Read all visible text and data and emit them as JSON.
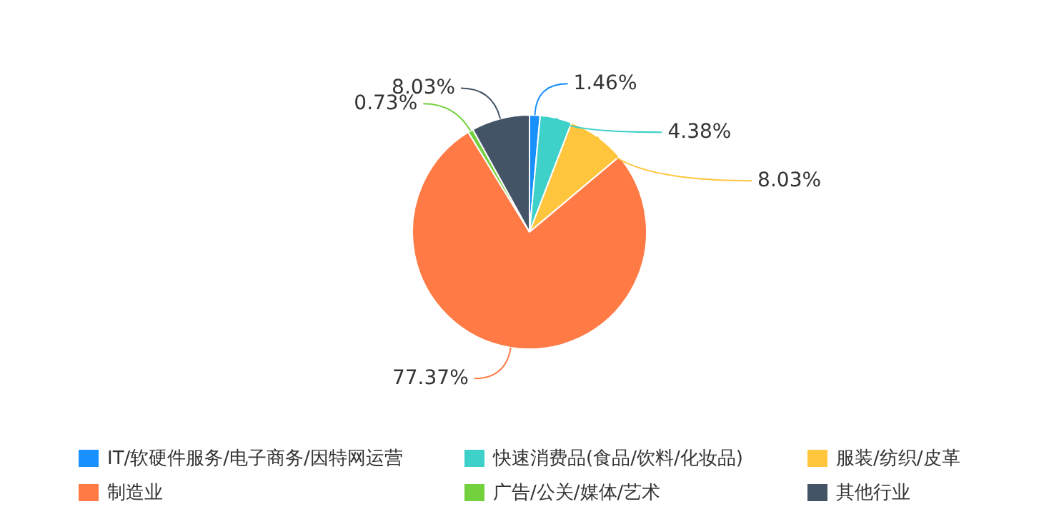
{
  "chart_data": {
    "type": "pie",
    "categories": [
      "IT/软硬件服务/电子商务/因特网运营",
      "快速消费品(食品/饮料/化妆品)",
      "服装/纺织/皮革",
      "制造业",
      "广告/公关/媒体/艺术",
      "其他行业"
    ],
    "values": [
      1.46,
      4.38,
      8.03,
      77.37,
      0.73,
      8.03
    ],
    "colors": [
      "#1890ff",
      "#3dd1c9",
      "#ffc53d",
      "#ff7a45",
      "#73d13d",
      "#435466"
    ],
    "value_labels": [
      "1.46%",
      "4.38%",
      "8.03%",
      "77.37%",
      "0.73%",
      "8.03%"
    ],
    "legend": "bottom"
  }
}
